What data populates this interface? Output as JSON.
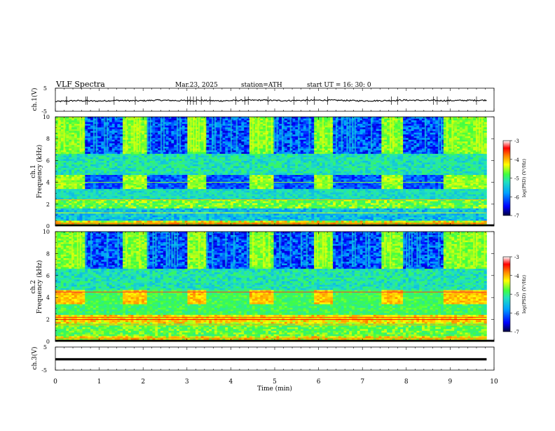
{
  "header": {
    "title": "VLF  Spectra",
    "date": "Mar.23, 2025",
    "station": "station=ATH",
    "start": "start  UT  =    16: 30: 0"
  },
  "chart_data": [
    {
      "type": "line",
      "panel": "ch1-waveform",
      "ylabel": "ch.1(V)",
      "yticks": [
        "5",
        "-5"
      ],
      "ylim": [
        -5,
        5
      ],
      "x_range_min": [
        0,
        9.83
      ],
      "series": [
        {
          "values": [
            -0.8,
            -0.4,
            -0.6,
            -0.3,
            -0.5,
            -0.2,
            -0.4,
            -0.3,
            -0.5,
            -0.3,
            -0.2,
            -0.4,
            -0.3,
            -0.2,
            -0.3,
            -0.5,
            -0.4,
            -0.2,
            -0.3,
            -0.4,
            -0.3,
            -0.2
          ]
        }
      ]
    },
    {
      "type": "heatmap",
      "panel": "ch1-spectrogram",
      "ylabel": "ch.1 Frequency (kHz)",
      "yticks": [
        "10",
        "8",
        "6",
        "4",
        "2",
        "0"
      ],
      "ylim": [
        0,
        10
      ],
      "x_range_min": [
        0,
        9.83
      ],
      "quiet_intervals_min": [
        [
          0.65,
          1.55
        ],
        [
          2.1,
          3.0
        ],
        [
          3.45,
          4.45
        ],
        [
          4.95,
          5.9
        ],
        [
          6.3,
          7.45
        ],
        [
          7.95,
          8.85
        ]
      ],
      "colorbar": {
        "label": "log(PSD) (V²/Hz)",
        "ticks": [
          "-3",
          "-4",
          "-5",
          "-6",
          "-7"
        ],
        "range": [
          -7,
          -3
        ]
      }
    },
    {
      "type": "heatmap",
      "panel": "ch2-spectrogram",
      "ylabel": "ch.2 Frequency (kHz)",
      "yticks": [
        "10",
        "8",
        "6",
        "4",
        "2",
        "0"
      ],
      "ylim": [
        0,
        10
      ],
      "x_range_min": [
        0,
        9.83
      ],
      "quiet_intervals_min": [
        [
          0.65,
          1.55
        ],
        [
          2.1,
          3.0
        ],
        [
          3.45,
          4.45
        ],
        [
          4.95,
          5.9
        ],
        [
          6.3,
          7.45
        ],
        [
          7.95,
          8.85
        ]
      ],
      "colorbar": {
        "label": "log(PSD) (V²/Hz)",
        "ticks": [
          "-3",
          "-4",
          "-5",
          "-6",
          "-7"
        ],
        "range": [
          -7,
          -3
        ]
      }
    },
    {
      "type": "line",
      "panel": "ch3-waveform",
      "ylabel": "ch.3(V)",
      "yticks": [
        "5",
        "-5"
      ],
      "ylim": [
        -5,
        5
      ],
      "x_range_min": [
        0,
        9.83
      ],
      "series": [
        {
          "values": [
            -0.3,
            -0.3,
            -0.3,
            -0.3,
            -0.3,
            -0.3,
            -0.3,
            -0.3,
            -0.3,
            -0.3,
            -0.3
          ]
        }
      ]
    }
  ],
  "x_axis": {
    "label": "Time  (min)",
    "range": [
      0,
      10
    ],
    "ticks": [
      "0",
      "1",
      "2",
      "3",
      "4",
      "5",
      "6",
      "7",
      "8",
      "9",
      "10"
    ]
  },
  "colors": {
    "background": "#ffffff",
    "colormap": [
      "#000060",
      "#0000ff",
      "#00a0ff",
      "#20e0c0",
      "#40ff40",
      "#ffff00",
      "#ff8000",
      "#ff0000",
      "#ffffff"
    ],
    "trace": "#000000"
  }
}
